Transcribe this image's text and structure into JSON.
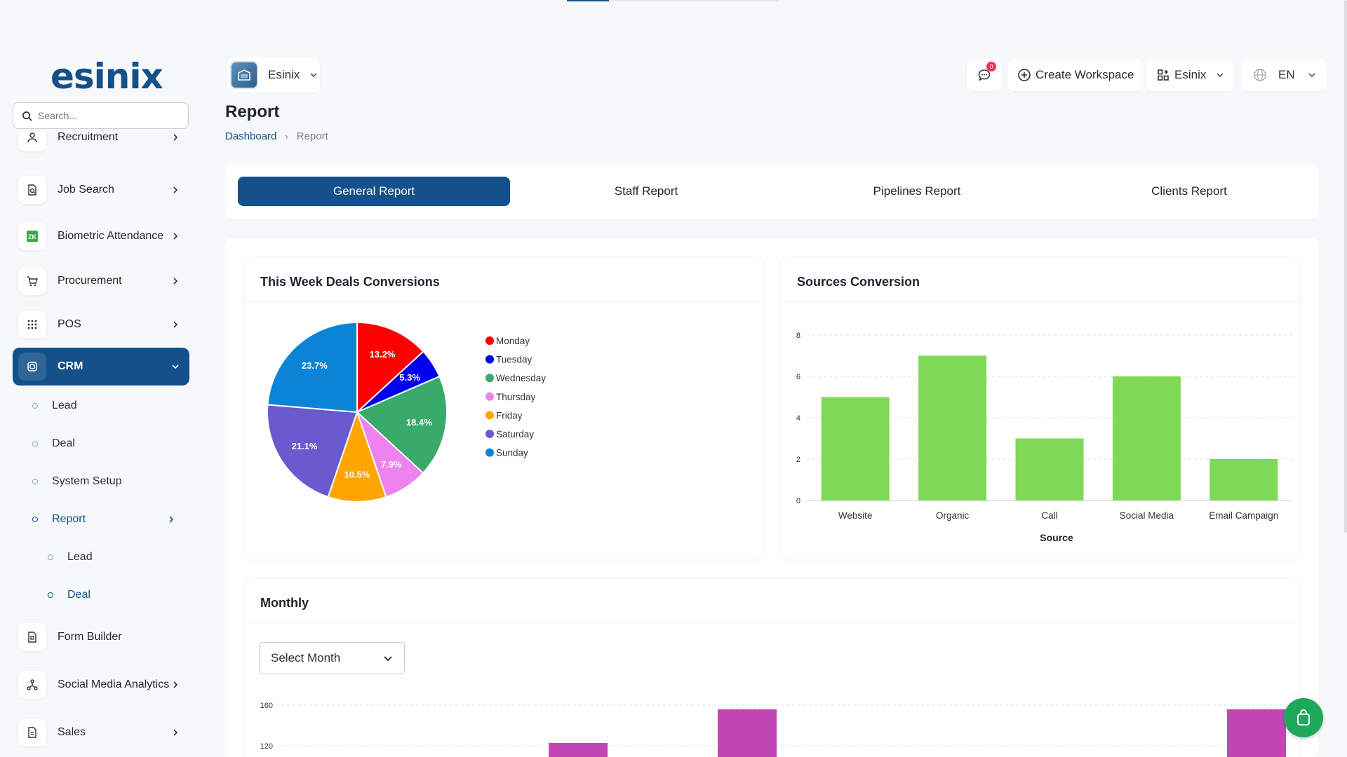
{
  "sidebar": {
    "logo": "esinix",
    "search_placeholder": "Search...",
    "items": [
      {
        "label": "Recruitment",
        "icon": "recruitment-icon"
      },
      {
        "label": "Job Search",
        "icon": "job-search-icon"
      },
      {
        "label": "Biometric Attendance",
        "icon": "zk-biometric-icon"
      },
      {
        "label": "Procurement",
        "icon": "cart-icon"
      },
      {
        "label": "POS",
        "icon": "grid-icon"
      },
      {
        "label": "CRM",
        "icon": "crm-icon"
      },
      {
        "label": "Form Builder",
        "icon": "form-icon"
      },
      {
        "label": "Social Media Analytics",
        "icon": "share-icon"
      },
      {
        "label": "Sales",
        "icon": "sales-icon"
      }
    ],
    "crm_sub": [
      "Lead",
      "Deal",
      "System Setup",
      "Report"
    ],
    "report_sub": [
      "Lead",
      "Deal"
    ]
  },
  "header": {
    "workspace": "Esinix",
    "notification_count": "0",
    "create_workspace": "Create Workspace",
    "workspace_menu": "Esinix",
    "language": "EN"
  },
  "page": {
    "title": "Report",
    "breadcrumb": {
      "home": "Dashboard",
      "current": "Report"
    }
  },
  "tabs": [
    "General Report",
    "Staff Report",
    "Pipelines Report",
    "Clients Report"
  ],
  "panels": {
    "week_title": "This Week Deals Conversions",
    "sources_title": "Sources Conversion",
    "monthly_title": "Monthly",
    "month_select": "Select Month"
  },
  "colors": {
    "primary": "#14508a",
    "bar_green": "#7ed957",
    "bar_magenta": "#c146b4",
    "monday": "#ff0000",
    "tuesday": "#0000ee",
    "wednesday": "#3aaa6a",
    "thursday": "#ee82ee",
    "friday": "#ffa500",
    "saturday": "#6a5acd",
    "sunday": "#0a84d6"
  },
  "chart_data": [
    {
      "type": "pie",
      "labels": [
        "Monday",
        "Tuesday",
        "Wednesday",
        "Thursday",
        "Friday",
        "Saturday",
        "Sunday"
      ],
      "values": [
        13.2,
        5.3,
        18.4,
        7.9,
        10.5,
        21.1,
        23.7
      ],
      "data_labels": [
        "13.2%",
        "5.3%",
        "18.4%",
        "7.9%",
        "10.5%",
        "21.1%",
        "23.7%"
      ],
      "legend": "right"
    },
    {
      "type": "bar",
      "categories": [
        "Website",
        "Organic",
        "Call",
        "Social Media",
        "Email Campaign"
      ],
      "values": [
        5,
        7,
        3,
        6,
        2
      ],
      "xlabel": "Source",
      "ylim": [
        0,
        8
      ],
      "yticks": [
        "0",
        "2",
        "4",
        "6",
        "8"
      ],
      "grid": true
    },
    {
      "type": "bar",
      "yticks": [
        "120",
        "160"
      ],
      "ylim_visible": [
        120,
        160
      ],
      "grid": true
    }
  ]
}
